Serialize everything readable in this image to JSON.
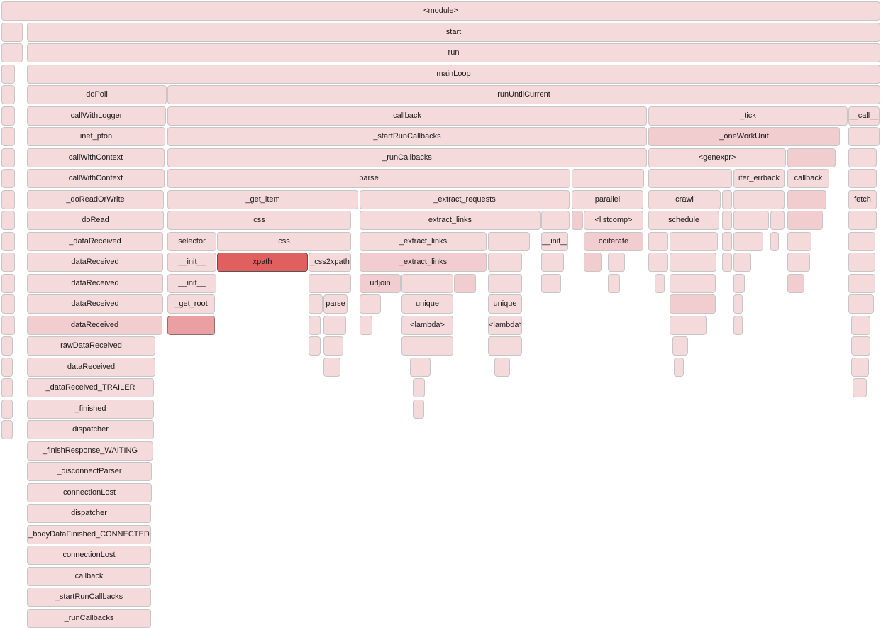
{
  "flamegraph": {
    "colors": {
      "frame": "#f5dadc",
      "frame_warm": "#f2cdd0",
      "frame_hot": "#eaa0a2",
      "selected": "#e06060"
    },
    "selected_function": "xpath",
    "frames": [
      {
        "label": "<module>"
      },
      {
        "label": ""
      },
      {
        "label": "start"
      },
      {
        "label": ""
      },
      {
        "label": "run"
      },
      {
        "label": ""
      },
      {
        "label": "mainLoop"
      },
      {
        "label": ""
      },
      {
        "label": "doPoll"
      },
      {
        "label": "runUntilCurrent"
      },
      {
        "label": ""
      },
      {
        "label": "callWithLogger"
      },
      {
        "label": "callback"
      },
      {
        "label": "_tick"
      },
      {
        "label": "__call__"
      },
      {
        "label": ""
      },
      {
        "label": "inet_pton"
      },
      {
        "label": "_startRunCallbacks"
      },
      {
        "label": "_oneWorkUnit"
      },
      {
        "label": ""
      },
      {
        "label": ""
      },
      {
        "label": "callWithContext"
      },
      {
        "label": "_runCallbacks"
      },
      {
        "label": "<genexpr>"
      },
      {
        "label": ""
      },
      {
        "label": ""
      },
      {
        "label": ""
      },
      {
        "label": "callWithContext"
      },
      {
        "label": "parse"
      },
      {
        "label": ""
      },
      {
        "label": ""
      },
      {
        "label": "iter_errback"
      },
      {
        "label": "callback"
      },
      {
        "label": ""
      },
      {
        "label": ""
      },
      {
        "label": "_doReadOrWrite"
      },
      {
        "label": "_get_item"
      },
      {
        "label": "_extract_requests"
      },
      {
        "label": "parallel"
      },
      {
        "label": "crawl"
      },
      {
        "label": ""
      },
      {
        "label": ""
      },
      {
        "label": ""
      },
      {
        "label": "fetch"
      },
      {
        "label": ""
      },
      {
        "label": "doRead"
      },
      {
        "label": "css"
      },
      {
        "label": "extract_links"
      },
      {
        "label": ""
      },
      {
        "label": ""
      },
      {
        "label": "<listcomp>"
      },
      {
        "label": "schedule"
      },
      {
        "label": ""
      },
      {
        "label": ""
      },
      {
        "label": ""
      },
      {
        "label": ""
      },
      {
        "label": ""
      },
      {
        "label": ""
      },
      {
        "label": "_dataReceived"
      },
      {
        "label": "selector"
      },
      {
        "label": "css"
      },
      {
        "label": "_extract_links"
      },
      {
        "label": ""
      },
      {
        "label": "__init__"
      },
      {
        "label": "coiterate"
      },
      {
        "label": ""
      },
      {
        "label": ""
      },
      {
        "label": ""
      },
      {
        "label": ""
      },
      {
        "label": ""
      },
      {
        "label": ""
      },
      {
        "label": ""
      },
      {
        "label": ""
      },
      {
        "label": "dataReceived"
      },
      {
        "label": "__init__"
      },
      {
        "label": "xpath"
      },
      {
        "label": "_css2xpath"
      },
      {
        "label": "_extract_links"
      },
      {
        "label": ""
      },
      {
        "label": ""
      },
      {
        "label": ""
      },
      {
        "label": ""
      },
      {
        "label": ""
      },
      {
        "label": ""
      },
      {
        "label": ""
      },
      {
        "label": ""
      },
      {
        "label": ""
      },
      {
        "label": ""
      },
      {
        "label": ""
      },
      {
        "label": "dataReceived"
      },
      {
        "label": "__init__"
      },
      {
        "label": ""
      },
      {
        "label": "urljoin"
      },
      {
        "label": ""
      },
      {
        "label": ""
      },
      {
        "label": ""
      },
      {
        "label": ""
      },
      {
        "label": ""
      },
      {
        "label": ""
      },
      {
        "label": ""
      },
      {
        "label": ""
      },
      {
        "label": ""
      },
      {
        "label": ""
      },
      {
        "label": ""
      },
      {
        "label": "dataReceived"
      },
      {
        "label": "_get_root"
      },
      {
        "label": ""
      },
      {
        "label": "parse"
      },
      {
        "label": ""
      },
      {
        "label": "unique"
      },
      {
        "label": "unique"
      },
      {
        "label": ""
      },
      {
        "label": ""
      },
      {
        "label": ""
      },
      {
        "label": ""
      },
      {
        "label": "dataReceived"
      },
      {
        "label": ""
      },
      {
        "label": ""
      },
      {
        "label": ""
      },
      {
        "label": ""
      },
      {
        "label": "<lambda>"
      },
      {
        "label": "<lambda>"
      },
      {
        "label": ""
      },
      {
        "label": ""
      },
      {
        "label": ""
      },
      {
        "label": ""
      },
      {
        "label": "rawDataReceived"
      },
      {
        "label": ""
      },
      {
        "label": ""
      },
      {
        "label": ""
      },
      {
        "label": ""
      },
      {
        "label": ""
      },
      {
        "label": ""
      },
      {
        "label": ""
      },
      {
        "label": "dataReceived"
      },
      {
        "label": ""
      },
      {
        "label": ""
      },
      {
        "label": ""
      },
      {
        "label": ""
      },
      {
        "label": ""
      },
      {
        "label": ""
      },
      {
        "label": "_dataReceived_TRAILER"
      },
      {
        "label": ""
      },
      {
        "label": ""
      },
      {
        "label": ""
      },
      {
        "label": "_finished"
      },
      {
        "label": ""
      },
      {
        "label": ""
      },
      {
        "label": "dispatcher"
      },
      {
        "label": "_finishResponse_WAITING"
      },
      {
        "label": "_disconnectParser"
      },
      {
        "label": "connectionLost"
      },
      {
        "label": "dispatcher"
      },
      {
        "label": "_bodyDataFinished_CONNECTED"
      },
      {
        "label": "connectionLost"
      },
      {
        "label": "callback"
      },
      {
        "label": "_startRunCallbacks"
      },
      {
        "label": "_runCallbacks"
      }
    ]
  }
}
